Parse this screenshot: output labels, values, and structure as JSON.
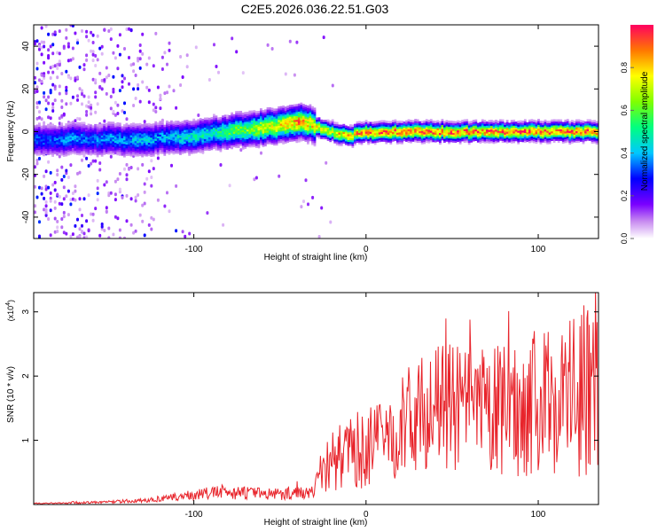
{
  "title": "C2E5.2026.036.22.51.G03",
  "chart_data": [
    {
      "type": "heatmap",
      "title": "C2E5.2026.036.22.51.G03",
      "xlabel": "Height of straight line (km)",
      "ylabel": "Frequency (Hz)",
      "xlim": [
        -193,
        135
      ],
      "ylim": [
        -50,
        50
      ],
      "xticks": [
        -100,
        0,
        100
      ],
      "xtick_labels": [
        "-100",
        "0",
        "100"
      ],
      "yticks": [
        -40,
        -20,
        0,
        20,
        40
      ],
      "ytick_labels": [
        "-40",
        "-20",
        "0",
        "20",
        "40"
      ],
      "colorbar": {
        "label": "Normalized spectral amplitude",
        "range": [
          0,
          1
        ],
        "ticks": [
          0,
          0.2,
          0.4,
          0.6,
          0.8
        ],
        "tick_labels": [
          "0.0",
          "0.2",
          "0.4",
          "0.6",
          "0.8"
        ]
      },
      "ridge": {
        "x": [
          -190,
          -180,
          -170,
          -160,
          -150,
          -140,
          -130,
          -120,
          -110,
          -100,
          -90,
          -80,
          -70,
          -60,
          -50,
          -45,
          -40,
          -35,
          -30,
          -25,
          -20,
          -15,
          -10,
          -5,
          0,
          5,
          10,
          20,
          30,
          40,
          50,
          60,
          70,
          80,
          90,
          100,
          110,
          120,
          130,
          135
        ],
        "freq": [
          -4,
          -4,
          -3,
          -4,
          -3,
          -4,
          -4,
          -3,
          -3,
          -2,
          -1,
          0,
          1,
          2,
          3,
          4,
          5,
          4,
          3,
          1,
          0,
          -1,
          -2,
          -1,
          0,
          -1,
          0,
          0,
          0,
          0,
          0,
          0,
          0,
          0,
          0,
          0,
          0,
          0,
          0,
          0
        ],
        "peak_amplitude": [
          0.35,
          0.35,
          0.4,
          0.35,
          0.4,
          0.4,
          0.45,
          0.4,
          0.45,
          0.5,
          0.5,
          0.6,
          0.65,
          0.75,
          0.8,
          0.85,
          0.9,
          0.85,
          0.8,
          0.75,
          0.8,
          0.85,
          0.85,
          0.9,
          0.95,
          0.9,
          0.95,
          0.95,
          0.95,
          0.95,
          0.95,
          0.95,
          0.95,
          0.95,
          0.95,
          0.95,
          0.95,
          0.95,
          0.95,
          0.95
        ]
      }
    },
    {
      "type": "line",
      "xlabel": "Height of straight line (km)",
      "ylabel": "SNR (10 * v/v)",
      "y_multiplier": "(x10",
      "y_multiplier_exp": "4",
      "y_multiplier_close": ")",
      "xlim": [
        -193,
        135
      ],
      "ylim": [
        0,
        3.3
      ],
      "xticks": [
        -100,
        0,
        100
      ],
      "xtick_labels": [
        "-100",
        "0",
        "100"
      ],
      "yticks": [
        1,
        2,
        3
      ],
      "ytick_labels": [
        "1",
        "2",
        "3"
      ],
      "series": [
        {
          "name": "SNR",
          "color": "#e8242b",
          "x": [
            -190,
            -180,
            -170,
            -160,
            -150,
            -140,
            -130,
            -120,
            -110,
            -100,
            -90,
            -80,
            -70,
            -60,
            -50,
            -40,
            -30,
            -28,
            -25,
            -20,
            -15,
            -10,
            -5,
            0,
            5,
            10,
            15,
            20,
            25,
            30,
            35,
            40,
            45,
            50,
            55,
            60,
            65,
            70,
            75,
            80,
            85,
            90,
            95,
            100,
            105,
            110,
            115,
            120,
            125,
            130,
            135
          ],
          "values": [
            0.02,
            0.02,
            0.03,
            0.03,
            0.04,
            0.05,
            0.06,
            0.08,
            0.12,
            0.15,
            0.18,
            0.2,
            0.18,
            0.17,
            0.17,
            0.18,
            0.2,
            0.45,
            0.55,
            0.65,
            0.75,
            0.8,
            0.85,
            0.85,
            0.95,
            1.0,
            1.1,
            1.2,
            1.3,
            1.4,
            1.45,
            1.5,
            1.55,
            1.5,
            1.5,
            1.45,
            1.45,
            1.4,
            1.45,
            1.45,
            1.5,
            1.5,
            1.55,
            1.6,
            1.6,
            1.65,
            1.7,
            1.75,
            1.75,
            1.8,
            1.8
          ],
          "fluctuation": [
            0.01,
            0.01,
            0.02,
            0.02,
            0.02,
            0.03,
            0.03,
            0.04,
            0.06,
            0.08,
            0.1,
            0.12,
            0.1,
            0.1,
            0.1,
            0.1,
            0.1,
            0.3,
            0.4,
            0.5,
            0.5,
            0.55,
            0.6,
            0.6,
            0.65,
            0.7,
            0.75,
            0.8,
            0.85,
            0.9,
            0.9,
            0.95,
            0.95,
            1.0,
            1.0,
            1.0,
            1.0,
            1.0,
            1.05,
            1.05,
            1.1,
            1.1,
            1.1,
            1.15,
            1.15,
            1.2,
            1.25,
            1.3,
            1.35,
            1.4,
            1.4
          ]
        }
      ]
    }
  ]
}
